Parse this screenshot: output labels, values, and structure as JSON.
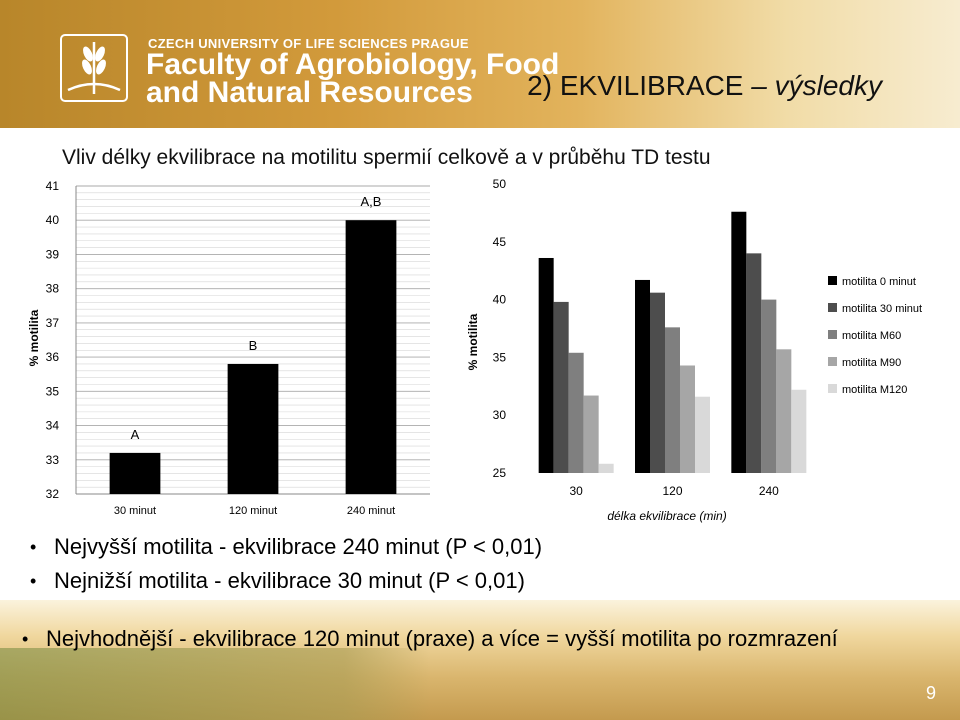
{
  "header": {
    "university": "CZECH UNIVERSITY OF LIFE SCIENCES PRAGUE",
    "faculty_line1": "Faculty of Agrobiology, Food",
    "faculty_line2": "and Natural Resources",
    "title_prefix": "2) ",
    "title_emphasis": "EKVILIBRACE",
    "title_suffix": " – výsledky"
  },
  "subtitle": "Vliv délky ekvilibrace na motilitu spermií celkově a v průběhu TD testu",
  "bullets": [
    "Nejvyšší motilita - ekvilibrace 240 minut (P < 0,01)",
    "Nejnižší motilita - ekvilibrace 30 minut (P < 0,01)",
    "Nejvhodnější - ekvilibrace 120 minut (praxe) a více = vyšší motilita  po rozmrazení"
  ],
  "page_number": "9",
  "chart_data": [
    {
      "type": "bar",
      "ylabel": "% motilita",
      "xlabel": "",
      "ylim": [
        32,
        41
      ],
      "grid": true,
      "categories": [
        "30 minut",
        "120 minut",
        "240 minut"
      ],
      "values": [
        33.2,
        35.8,
        40.0
      ],
      "bar_labels": [
        "A",
        "B",
        "A,B"
      ],
      "yticks": [
        32,
        33,
        34,
        35,
        36,
        37,
        38,
        39,
        40,
        41
      ],
      "bar_color": "#000000"
    },
    {
      "type": "bar",
      "ylabel": "% motilita",
      "xlabel": "délka ekvilibrace (min)",
      "ylim": [
        25,
        50
      ],
      "grid": false,
      "categories": [
        "30",
        "120",
        "240"
      ],
      "yticks": [
        25,
        30,
        35,
        40,
        45,
        50
      ],
      "legend_position": "right",
      "series": [
        {
          "name": "motilita 0 minut",
          "color": "#000000",
          "values": [
            43.6,
            41.7,
            47.6
          ]
        },
        {
          "name": "motilita 30 minut",
          "color": "#4d4d4d",
          "values": [
            39.8,
            40.6,
            44.0
          ]
        },
        {
          "name": "motilita M60",
          "color": "#7f7f7f",
          "values": [
            35.4,
            37.6,
            40.0
          ]
        },
        {
          "name": "motilita M90",
          "color": "#a6a6a6",
          "values": [
            31.7,
            34.3,
            35.7
          ]
        },
        {
          "name": "motilita M120",
          "color": "#d9d9d9",
          "values": [
            25.8,
            31.6,
            32.2
          ]
        }
      ]
    }
  ]
}
